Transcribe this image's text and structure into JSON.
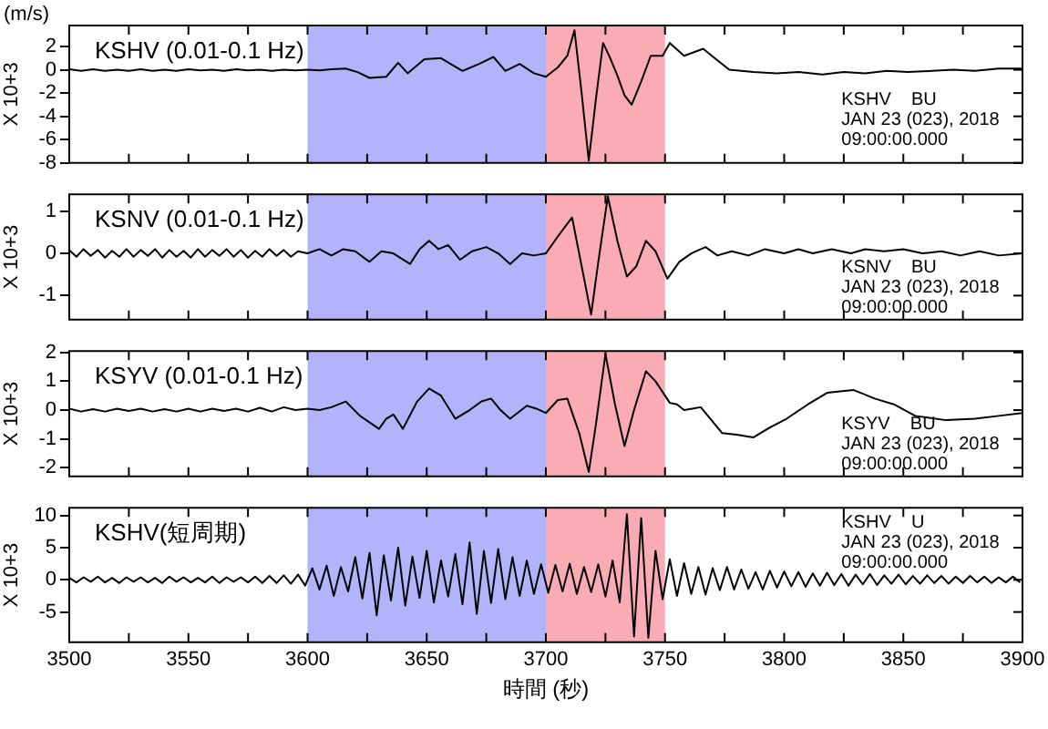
{
  "chart_data": [
    {
      "type": "line",
      "title": "KSHV (0.01-0.1 Hz)",
      "subtitle": "(m/s)",
      "ylabel": "X 10+3",
      "annotations": [
        "KSHV    BU",
        "JAN 23 (023), 2018",
        "09:00:00.000"
      ],
      "tick_labels": "y",
      "xlim": [
        3500,
        3900
      ],
      "xticks": [
        3500,
        {
          "value": 3525,
          "label": null
        },
        3550,
        {
          "value": 3575,
          "label": null
        },
        3600,
        {
          "value": 3625,
          "label": null
        },
        3650,
        {
          "value": 3675,
          "label": null
        },
        3700,
        {
          "value": 3725,
          "label": null
        },
        3750,
        {
          "value": 3775,
          "label": null
        },
        3800,
        {
          "value": 3825,
          "label": null
        },
        3850,
        {
          "value": 3875,
          "label": null
        },
        3900
      ],
      "ylim": [
        -8,
        3.8
      ],
      "yticks": [
        -8,
        -6,
        -4,
        -2,
        0,
        2
      ],
      "bands": [
        {
          "axis": "x",
          "from": 3600,
          "to": 3700,
          "color": "#b3b3fb"
        },
        {
          "axis": "x",
          "from": 3700,
          "to": 3750,
          "color": "#fbabb4"
        }
      ],
      "x": [
        3500,
        3505,
        3510,
        3515,
        3520,
        3525,
        3530,
        3535,
        3540,
        3545,
        3550,
        3555,
        3560,
        3565,
        3570,
        3575,
        3580,
        3585,
        3590,
        3595,
        3600,
        3605,
        3610,
        3616,
        3621,
        3626,
        3633,
        3638,
        3642,
        3649,
        3656,
        3665,
        3672,
        3678,
        3683,
        3689,
        3695,
        3700,
        3705,
        3709,
        3712,
        3715,
        3718,
        3721,
        3724,
        3727,
        3730,
        3733,
        3736,
        3740,
        3744,
        3749,
        3752,
        3758,
        3766,
        3772,
        3777,
        3787,
        3797,
        3806,
        3816,
        3825,
        3834,
        3843,
        3852,
        3862,
        3871,
        3880,
        3890,
        3900
      ],
      "series": [
        {
          "color": "#000000",
          "values": [
            0.05,
            -0.1,
            0.05,
            -0.1,
            0.0,
            -0.1,
            0.05,
            -0.1,
            0.0,
            -0.1,
            0.05,
            -0.05,
            0.0,
            -0.1,
            0.05,
            -0.05,
            0.0,
            -0.1,
            0.0,
            -0.05,
            0.0,
            -0.05,
            0.05,
            0.1,
            -0.2,
            -0.7,
            -0.6,
            0.6,
            -0.3,
            0.9,
            1.0,
            -0.1,
            0.5,
            1.1,
            -0.1,
            0.5,
            -0.3,
            -0.6,
            0.2,
            1.2,
            3.4,
            -2.0,
            -7.8,
            -2.5,
            2.3,
            1.0,
            -0.5,
            -2.2,
            -3.0,
            -1.0,
            1.2,
            1.2,
            2.3,
            1.2,
            1.8,
            0.8,
            0.0,
            -0.2,
            -0.3,
            -0.2,
            -0.4,
            -0.2,
            -0.3,
            -0.1,
            -0.2,
            -0.1,
            0.0,
            -0.1,
            0.1,
            0.1
          ]
        }
      ]
    },
    {
      "type": "line",
      "title": "KSNV (0.01-0.1 Hz)",
      "ylabel": "X 10+3",
      "annotations": [
        "KSNV    BU",
        "JAN 23 (023), 2018",
        "09:00:00.000"
      ],
      "tick_labels": "y",
      "xlim": [
        3500,
        3900
      ],
      "xticks": [
        3500,
        {
          "value": 3525,
          "label": null
        },
        3550,
        {
          "value": 3575,
          "label": null
        },
        3600,
        {
          "value": 3625,
          "label": null
        },
        3650,
        {
          "value": 3675,
          "label": null
        },
        3700,
        {
          "value": 3725,
          "label": null
        },
        3750,
        {
          "value": 3775,
          "label": null
        },
        3800,
        {
          "value": 3825,
          "label": null
        },
        3850,
        {
          "value": 3875,
          "label": null
        },
        3900
      ],
      "ylim": [
        -1.57,
        1.4
      ],
      "yticks": [
        -1,
        0,
        1
      ],
      "bands": [
        {
          "axis": "x",
          "from": 3600,
          "to": 3700,
          "color": "#b3b3fb"
        },
        {
          "axis": "x",
          "from": 3700,
          "to": 3750,
          "color": "#fbabb4"
        }
      ],
      "x": [
        3500,
        3503,
        3506,
        3509,
        3512,
        3515,
        3518,
        3521,
        3524,
        3527,
        3530,
        3533,
        3536,
        3539,
        3542,
        3545,
        3548,
        3551,
        3554,
        3557,
        3560,
        3563,
        3566,
        3569,
        3572,
        3575,
        3578,
        3581,
        3584,
        3587,
        3590,
        3593,
        3596,
        3600,
        3605,
        3610,
        3615,
        3620,
        3626,
        3631,
        3636,
        3643,
        3647,
        3651,
        3655,
        3659,
        3664,
        3669,
        3675,
        3680,
        3685,
        3690,
        3695,
        3700,
        3705,
        3711,
        3715,
        3719,
        3722,
        3726,
        3730,
        3734,
        3738,
        3742,
        3746,
        3751,
        3756,
        3761,
        3767,
        3772,
        3778,
        3785,
        3792,
        3800,
        3806,
        3812,
        3820,
        3828,
        3834,
        3842,
        3850,
        3858,
        3866,
        3874,
        3882,
        3890,
        3900
      ],
      "series": [
        {
          "color": "#000000",
          "values": [
            0.08,
            -0.08,
            0.1,
            -0.06,
            0.08,
            -0.1,
            0.06,
            -0.08,
            0.1,
            -0.08,
            0.08,
            -0.06,
            0.1,
            -0.1,
            0.08,
            -0.08,
            0.06,
            -0.1,
            0.1,
            -0.08,
            0.08,
            -0.06,
            0.1,
            -0.08,
            0.08,
            -0.1,
            0.06,
            -0.08,
            0.1,
            -0.06,
            0.08,
            -0.08,
            0.05,
            0.0,
            0.1,
            -0.05,
            0.1,
            0.05,
            -0.2,
            0.05,
            0.0,
            -0.25,
            0.1,
            0.3,
            0.1,
            0.2,
            -0.15,
            0.05,
            0.15,
            0.0,
            -0.25,
            0.0,
            -0.05,
            0.0,
            0.4,
            0.85,
            -0.3,
            -1.45,
            -0.2,
            1.35,
            0.3,
            -0.55,
            -0.3,
            0.3,
            0.05,
            -0.6,
            -0.2,
            0.0,
            0.15,
            -0.05,
            0.05,
            -0.05,
            0.1,
            0.0,
            0.1,
            0.0,
            0.1,
            0.0,
            0.1,
            0.05,
            0.1,
            0.0,
            0.05,
            -0.05,
            0.05,
            -0.05,
            0.0
          ]
        }
      ]
    },
    {
      "type": "line",
      "title": "KSYV (0.01-0.1 Hz)",
      "ylabel": "X 10+3",
      "annotations": [
        "KSYV    BU",
        "JAN 23 (023), 2018",
        "09:00:00.000"
      ],
      "tick_labels": "y",
      "xlim": [
        3500,
        3900
      ],
      "xticks": [
        3500,
        {
          "value": 3525,
          "label": null
        },
        3550,
        {
          "value": 3575,
          "label": null
        },
        3600,
        {
          "value": 3625,
          "label": null
        },
        3650,
        {
          "value": 3675,
          "label": null
        },
        3700,
        {
          "value": 3725,
          "label": null
        },
        3750,
        {
          "value": 3775,
          "label": null
        },
        3800,
        {
          "value": 3825,
          "label": null
        },
        3850,
        {
          "value": 3875,
          "label": null
        },
        3900
      ],
      "ylim": [
        -2.3,
        2.05
      ],
      "yticks": [
        -2,
        -1,
        0,
        1,
        2
      ],
      "bands": [
        {
          "axis": "x",
          "from": 3600,
          "to": 3700,
          "color": "#b3b3fb"
        },
        {
          "axis": "x",
          "from": 3700,
          "to": 3750,
          "color": "#fbabb4"
        }
      ],
      "x": [
        3500,
        3505,
        3510,
        3515,
        3520,
        3525,
        3530,
        3535,
        3540,
        3545,
        3550,
        3555,
        3560,
        3565,
        3570,
        3575,
        3580,
        3585,
        3590,
        3595,
        3600,
        3605,
        3610,
        3616,
        3622,
        3630,
        3633,
        3636,
        3640,
        3646,
        3651,
        3656,
        3662,
        3668,
        3673,
        3677,
        3681,
        3685,
        3692,
        3696,
        3700,
        3705,
        3709,
        3714,
        3718,
        3721,
        3725,
        3729,
        3733,
        3737,
        3742,
        3746,
        3752,
        3755,
        3758,
        3765,
        3774,
        3780,
        3787,
        3794,
        3801,
        3810,
        3818,
        3829,
        3838,
        3846,
        3855,
        3868,
        3880,
        3890,
        3900
      ],
      "series": [
        {
          "color": "#000000",
          "values": [
            0.05,
            -0.05,
            0.03,
            -0.05,
            0.05,
            -0.03,
            0.05,
            -0.05,
            0.03,
            -0.05,
            0.05,
            -0.05,
            0.05,
            -0.03,
            0.05,
            -0.05,
            0.08,
            -0.05,
            0.1,
            0.0,
            0.05,
            0.0,
            0.1,
            0.3,
            -0.2,
            -0.65,
            -0.3,
            -0.15,
            -0.65,
            0.3,
            0.75,
            0.5,
            -0.3,
            0.0,
            0.3,
            0.4,
            0.0,
            -0.3,
            0.15,
            0.05,
            -0.1,
            0.35,
            0.4,
            -0.8,
            -2.15,
            -0.5,
            1.95,
            0.2,
            -1.25,
            0.0,
            1.35,
            1.0,
            0.25,
            0.2,
            0.0,
            0.1,
            -0.8,
            -0.85,
            -0.95,
            -0.6,
            -0.3,
            0.2,
            0.6,
            0.7,
            0.4,
            0.2,
            -0.2,
            -0.35,
            -0.3,
            -0.2,
            -0.1
          ]
        }
      ]
    },
    {
      "type": "line",
      "title": "KSHV(短周期)",
      "ylabel": "X 10+3",
      "xlabel": "時間 (秒)",
      "annotations": [
        "KSHV    U",
        "JAN 23 (023), 2018",
        "09:00:00.000"
      ],
      "xlim": [
        3500,
        3900
      ],
      "xticks": [
        3500,
        {
          "value": 3525,
          "label": null
        },
        3550,
        {
          "value": 3575,
          "label": null
        },
        3600,
        {
          "value": 3625,
          "label": null
        },
        3650,
        {
          "value": 3675,
          "label": null
        },
        3700,
        {
          "value": 3725,
          "label": null
        },
        3750,
        {
          "value": 3775,
          "label": null
        },
        3800,
        {
          "value": 3825,
          "label": null
        },
        3850,
        {
          "value": 3875,
          "label": null
        },
        3900
      ],
      "ylim": [
        -9.7,
        11.2
      ],
      "yticks": [
        -5,
        0,
        5,
        10
      ],
      "bands": [
        {
          "axis": "x",
          "from": 3600,
          "to": 3700,
          "color": "#b3b3fb"
        },
        {
          "axis": "x",
          "from": 3700,
          "to": 3750,
          "color": "#fbabb4"
        }
      ],
      "x": [
        3500,
        3503,
        3506,
        3509,
        3512,
        3515,
        3518,
        3521,
        3524,
        3527,
        3530,
        3533,
        3536,
        3539,
        3542,
        3545,
        3548,
        3551,
        3554,
        3557,
        3560,
        3563,
        3566,
        3569,
        3572,
        3575,
        3578,
        3581,
        3584,
        3587,
        3590,
        3593,
        3596,
        3599,
        3602,
        3605,
        3608,
        3611,
        3614,
        3617,
        3620,
        3623,
        3626,
        3629,
        3632,
        3635,
        3638,
        3641,
        3644,
        3647,
        3650,
        3653,
        3656,
        3659,
        3662,
        3665,
        3668,
        3671,
        3674,
        3677,
        3680,
        3683,
        3686,
        3689,
        3692,
        3695,
        3698,
        3701,
        3704,
        3707,
        3710,
        3713,
        3716,
        3719,
        3722,
        3725,
        3728,
        3731,
        3734,
        3737,
        3740,
        3743,
        3746,
        3749,
        3752,
        3755,
        3758,
        3761,
        3764,
        3767,
        3770,
        3773,
        3776,
        3779,
        3782,
        3785,
        3788,
        3791,
        3794,
        3797,
        3800,
        3803,
        3806,
        3809,
        3812,
        3815,
        3818,
        3821,
        3824,
        3827,
        3830,
        3833,
        3836,
        3839,
        3842,
        3845,
        3848,
        3851,
        3854,
        3857,
        3860,
        3863,
        3866,
        3869,
        3872,
        3875,
        3878,
        3881,
        3884,
        3887,
        3890,
        3893,
        3896,
        3899
      ],
      "series": [
        {
          "color": "#000000",
          "values": [
            0.3,
            -0.4,
            0.4,
            -0.3,
            0.5,
            -0.4,
            0.3,
            -0.5,
            0.4,
            -0.3,
            0.4,
            -0.4,
            0.3,
            -0.5,
            0.5,
            -0.3,
            0.4,
            -0.4,
            0.3,
            -0.4,
            0.5,
            -0.5,
            0.4,
            -0.3,
            0.4,
            -0.4,
            0.5,
            -0.5,
            0.6,
            -0.5,
            0.7,
            -0.6,
            0.8,
            -0.9,
            1.8,
            -1.5,
            2.2,
            -2.5,
            2.0,
            -1.8,
            3.5,
            -2.9,
            4.2,
            -5.5,
            3.8,
            -3.2,
            5.0,
            -4.0,
            3.6,
            -2.8,
            4.5,
            -3.5,
            3.0,
            -2.6,
            4.0,
            -3.8,
            5.8,
            -5.3,
            4.5,
            -3.6,
            4.8,
            -3.0,
            3.5,
            -2.5,
            3.0,
            -2.2,
            2.4,
            -2.0,
            2.3,
            -1.8,
            2.5,
            -2.2,
            2.0,
            -1.9,
            2.4,
            -2.6,
            3.0,
            -3.5,
            10.2,
            -8.8,
            9.6,
            -9.0,
            4.5,
            -3.0,
            3.2,
            -2.5,
            2.6,
            -2.2,
            2.0,
            -2.3,
            1.8,
            -1.6,
            2.0,
            -1.5,
            1.6,
            -1.4,
            1.2,
            -1.5,
            1.4,
            -1.2,
            1.3,
            -1.0,
            1.2,
            -1.1,
            1.0,
            -0.9,
            1.1,
            -0.8,
            0.9,
            -0.9,
            0.8,
            -0.7,
            0.9,
            -0.8,
            0.7,
            -0.6,
            0.8,
            -0.7,
            0.6,
            -0.6,
            0.7,
            -0.5,
            0.6,
            -0.6,
            0.5,
            -0.5,
            0.6,
            -0.4,
            0.5,
            -0.5,
            0.4,
            -0.4,
            0.5,
            -0.4
          ]
        }
      ]
    }
  ]
}
